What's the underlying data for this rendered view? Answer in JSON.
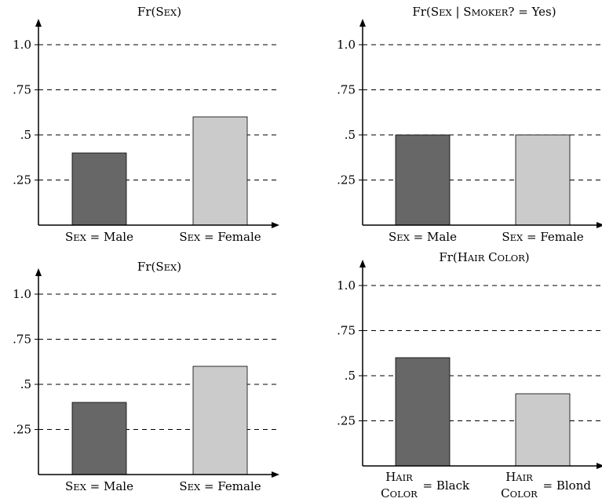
{
  "colors": {
    "dark_bar": "#676767",
    "light_bar": "#cbcbcb",
    "axis": "#000000",
    "grid": "#000000"
  },
  "chart_data": [
    {
      "type": "bar",
      "title": "Fr(Sex)",
      "categories": [
        "Sex = Male",
        "Sex = Female"
      ],
      "values": [
        0.4,
        0.6
      ],
      "ylim": [
        0,
        1.1
      ],
      "yticks": [
        0.25,
        0.5,
        0.75,
        1.0
      ],
      "ytick_labels": [
        ".25",
        ".5",
        ".75",
        "1.0"
      ],
      "grid": true,
      "bar_colors": [
        "#676767",
        "#cbcbcb"
      ]
    },
    {
      "type": "bar",
      "title": "Fr(Sex | Smoker? = Yes)",
      "categories": [
        "Sex = Male",
        "Sex = Female"
      ],
      "values": [
        0.5,
        0.5
      ],
      "ylim": [
        0,
        1.1
      ],
      "yticks": [
        0.25,
        0.5,
        0.75,
        1.0
      ],
      "ytick_labels": [
        ".25",
        ".5",
        ".75",
        "1.0"
      ],
      "grid": true,
      "bar_colors": [
        "#676767",
        "#cbcbcb"
      ]
    },
    {
      "type": "bar",
      "title": "Fr(Sex)",
      "categories": [
        "Sex = Male",
        "Sex = Female"
      ],
      "values": [
        0.4,
        0.6
      ],
      "ylim": [
        0,
        1.1
      ],
      "yticks": [
        0.25,
        0.5,
        0.75,
        1.0
      ],
      "ytick_labels": [
        ".25",
        ".5",
        ".75",
        "1.0"
      ],
      "grid": true,
      "bar_colors": [
        "#676767",
        "#cbcbcb"
      ]
    },
    {
      "type": "bar",
      "title": "Fr(Hair Color)",
      "categories": [
        "Hair Color = Black",
        "Hair Color = Blond"
      ],
      "values": [
        0.6,
        0.4
      ],
      "ylim": [
        0,
        1.1
      ],
      "yticks": [
        0.25,
        0.5,
        0.75,
        1.0
      ],
      "ytick_labels": [
        ".25",
        ".5",
        ".75",
        "1.0"
      ],
      "grid": true,
      "bar_colors": [
        "#676767",
        "#cbcbcb"
      ]
    }
  ]
}
